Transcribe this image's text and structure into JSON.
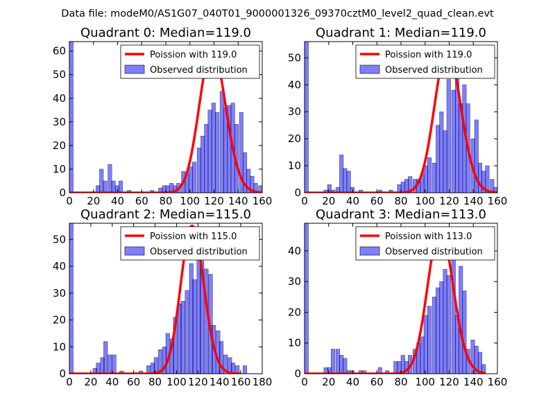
{
  "figure": {
    "suptitle": "Data file: modeM0/AS1G07_040T01_9000001326_09370cztM0_level2_quad_clean.evt"
  },
  "chart_data": [
    {
      "type": "bar",
      "title": "Quadrant 0: Median=119.0",
      "xlabel": "",
      "ylabel": "",
      "xlim": [
        0,
        160
      ],
      "ylim": [
        0,
        64
      ],
      "xticks": [
        0,
        20,
        40,
        60,
        80,
        100,
        120,
        140,
        160
      ],
      "yticks": [
        0,
        10,
        20,
        30,
        40,
        50,
        60
      ],
      "legend": {
        "placement": "top-right",
        "entries": [
          "Poission with 119.0",
          "Observed distribution"
        ]
      },
      "line": {
        "name": "Poission with 119.0",
        "mu": 119.0,
        "peak": 61,
        "x_range": [
          0,
          160
        ],
        "color": "#ff0000"
      },
      "hist": {
        "name": "Observed distribution",
        "color": "#0000ff",
        "opacity": 0.5,
        "bin_width": 3.2,
        "bins": [
          [
            0,
            64
          ],
          [
            22,
            3
          ],
          [
            25,
            10
          ],
          [
            28,
            5
          ],
          [
            32,
            12
          ],
          [
            35,
            5
          ],
          [
            38,
            3
          ],
          [
            41,
            5
          ],
          [
            48,
            1
          ],
          [
            67,
            1
          ],
          [
            74,
            2
          ],
          [
            77,
            3
          ],
          [
            80,
            3
          ],
          [
            83,
            4
          ],
          [
            86,
            3
          ],
          [
            89,
            4
          ],
          [
            93,
            9
          ],
          [
            96,
            8
          ],
          [
            99,
            11
          ],
          [
            102,
            13
          ],
          [
            106,
            19
          ],
          [
            109,
            24
          ],
          [
            112,
            29
          ],
          [
            115,
            35
          ],
          [
            118,
            38
          ],
          [
            121,
            34
          ],
          [
            125,
            43
          ],
          [
            128,
            36
          ],
          [
            131,
            37
          ],
          [
            134,
            38
          ],
          [
            137,
            29
          ],
          [
            141,
            34
          ],
          [
            144,
            17
          ],
          [
            147,
            10
          ],
          [
            150,
            7
          ],
          [
            153,
            4
          ],
          [
            157,
            3
          ]
        ]
      }
    },
    {
      "type": "bar",
      "title": "Quadrant 1: Median=119.0",
      "xlabel": "",
      "ylabel": "",
      "xlim": [
        0,
        160
      ],
      "ylim": [
        0,
        56
      ],
      "xticks": [
        0,
        20,
        40,
        60,
        80,
        100,
        120,
        140,
        160
      ],
      "yticks": [
        0,
        10,
        20,
        30,
        40,
        50
      ],
      "legend": {
        "placement": "top-right",
        "entries": [
          "Poission with 119.0",
          "Observed distribution"
        ]
      },
      "line": {
        "name": "Poission with 119.0",
        "mu": 119.0,
        "peak": 53,
        "x_range": [
          0,
          160
        ],
        "color": "#ff0000"
      },
      "hist": {
        "name": "Observed distribution",
        "color": "#0000ff",
        "opacity": 0.5,
        "bin_width": 3.2,
        "bins": [
          [
            0,
            56
          ],
          [
            16,
            1
          ],
          [
            19,
            3
          ],
          [
            22,
            1
          ],
          [
            26,
            2
          ],
          [
            29,
            14
          ],
          [
            32,
            9
          ],
          [
            35,
            8
          ],
          [
            38,
            2
          ],
          [
            45,
            1
          ],
          [
            61,
            1
          ],
          [
            70,
            1
          ],
          [
            77,
            3
          ],
          [
            80,
            4
          ],
          [
            83,
            5
          ],
          [
            86,
            6
          ],
          [
            90,
            5
          ],
          [
            93,
            5
          ],
          [
            96,
            7
          ],
          [
            99,
            10
          ],
          [
            102,
            13
          ],
          [
            106,
            11
          ],
          [
            109,
            25
          ],
          [
            112,
            30
          ],
          [
            115,
            23
          ],
          [
            118,
            42
          ],
          [
            122,
            38
          ],
          [
            125,
            50
          ],
          [
            128,
            33
          ],
          [
            131,
            40
          ],
          [
            134,
            33
          ],
          [
            138,
            20
          ],
          [
            141,
            27
          ],
          [
            144,
            11
          ],
          [
            147,
            8
          ],
          [
            150,
            10
          ],
          [
            154,
            5
          ],
          [
            157,
            2
          ]
        ]
      }
    },
    {
      "type": "bar",
      "title": "Quadrant 2: Median=115.0",
      "xlabel": "",
      "ylabel": "",
      "xlim": [
        0,
        180
      ],
      "ylim": [
        0,
        56
      ],
      "xticks": [
        0,
        20,
        40,
        60,
        80,
        100,
        120,
        140,
        160,
        180
      ],
      "yticks": [
        0,
        10,
        20,
        30,
        40,
        50
      ],
      "legend": {
        "placement": "top-right",
        "entries": [
          "Poission with 115.0",
          "Observed distribution"
        ]
      },
      "line": {
        "name": "Poission with 115.0",
        "mu": 115.0,
        "peak": 55,
        "x_range": [
          0,
          160
        ],
        "color": "#ff0000"
      },
      "hist": {
        "name": "Observed distribution",
        "color": "#0000ff",
        "opacity": 0.5,
        "bin_width": 3.6,
        "bins": [
          [
            0,
            56
          ],
          [
            22,
            2
          ],
          [
            25,
            4
          ],
          [
            29,
            6
          ],
          [
            32,
            12
          ],
          [
            36,
            7
          ],
          [
            40,
            7
          ],
          [
            47,
            1
          ],
          [
            65,
            1
          ],
          [
            72,
            3
          ],
          [
            76,
            4
          ],
          [
            79,
            6
          ],
          [
            83,
            9
          ],
          [
            87,
            10
          ],
          [
            90,
            15
          ],
          [
            94,
            13
          ],
          [
            97,
            21
          ],
          [
            101,
            26
          ],
          [
            104,
            27
          ],
          [
            108,
            31
          ],
          [
            112,
            41
          ],
          [
            115,
            35
          ],
          [
            119,
            48
          ],
          [
            122,
            42
          ],
          [
            126,
            39
          ],
          [
            130,
            37
          ],
          [
            133,
            18
          ],
          [
            137,
            16
          ],
          [
            140,
            12
          ],
          [
            144,
            7
          ],
          [
            148,
            6
          ],
          [
            151,
            4
          ],
          [
            155,
            3
          ],
          [
            162,
            3
          ]
        ]
      }
    },
    {
      "type": "bar",
      "title": "Quadrant 3: Median=113.0",
      "xlabel": "",
      "ylabel": "",
      "xlim": [
        0,
        160
      ],
      "ylim": [
        0,
        49
      ],
      "xticks": [
        0,
        20,
        40,
        60,
        80,
        100,
        120,
        140,
        160
      ],
      "yticks": [
        0,
        10,
        20,
        30,
        40
      ],
      "legend": {
        "placement": "top-right",
        "entries": [
          "Poission with 113.0",
          "Observed distribution"
        ]
      },
      "line": {
        "name": "Poission with 113.0",
        "mu": 113.0,
        "peak": 47,
        "x_range": [
          0,
          150
        ],
        "color": "#ff0000"
      },
      "hist": {
        "name": "Observed distribution",
        "color": "#0000ff",
        "opacity": 0.5,
        "bin_width": 3.2,
        "bins": [
          [
            0,
            49
          ],
          [
            16,
            2
          ],
          [
            19,
            2
          ],
          [
            22,
            8
          ],
          [
            26,
            8
          ],
          [
            29,
            6
          ],
          [
            32,
            5
          ],
          [
            35,
            1
          ],
          [
            38,
            1
          ],
          [
            45,
            1
          ],
          [
            48,
            1
          ],
          [
            61,
            2
          ],
          [
            67,
            1
          ],
          [
            74,
            4
          ],
          [
            77,
            4
          ],
          [
            80,
            6
          ],
          [
            83,
            4
          ],
          [
            86,
            6
          ],
          [
            90,
            8
          ],
          [
            93,
            10
          ],
          [
            96,
            12
          ],
          [
            99,
            19
          ],
          [
            102,
            22
          ],
          [
            106,
            25
          ],
          [
            109,
            28
          ],
          [
            112,
            30
          ],
          [
            115,
            34
          ],
          [
            118,
            32
          ],
          [
            122,
            47
          ],
          [
            125,
            19
          ],
          [
            128,
            35
          ],
          [
            131,
            27
          ],
          [
            134,
            8
          ],
          [
            138,
            11
          ],
          [
            141,
            9
          ],
          [
            144,
            7
          ],
          [
            147,
            3
          ]
        ]
      }
    }
  ]
}
